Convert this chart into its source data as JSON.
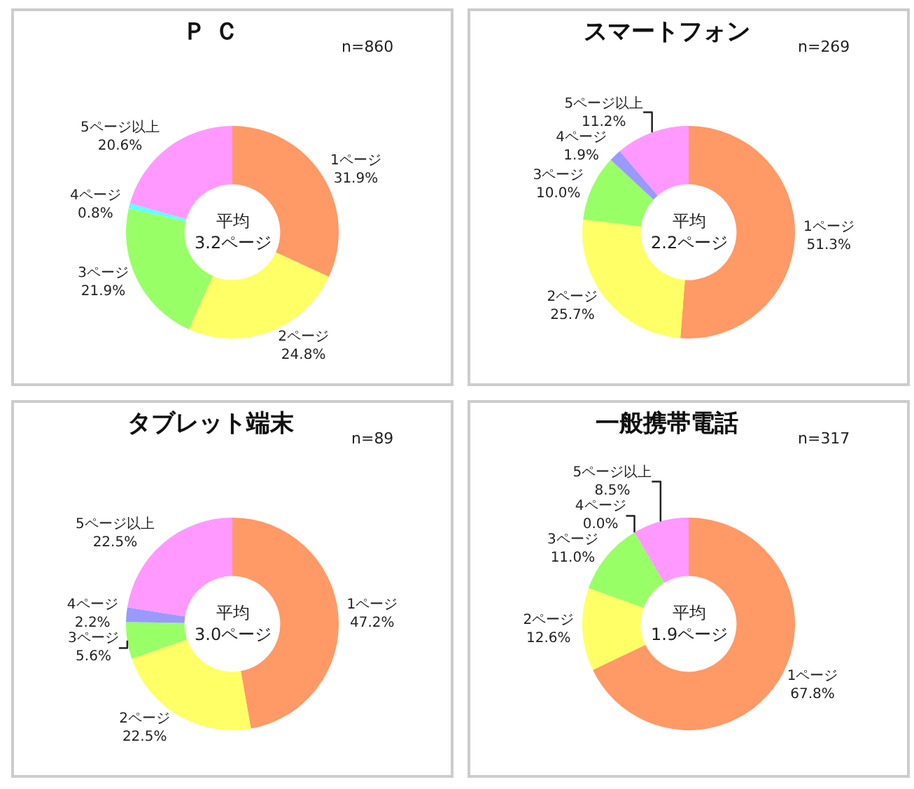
{
  "chart_data": [
    {
      "type": "donut",
      "title": "Ｐ Ｃ",
      "categories": [
        "1ページ",
        "2ページ",
        "3ページ",
        "4ページ",
        "5ページ以上"
      ],
      "values": [
        31.9,
        24.8,
        21.9,
        0.8,
        20.6
      ],
      "value_labels": [
        "31.9%",
        "24.8%",
        "21.9%",
        "0.8%",
        "20.6%"
      ],
      "colors": [
        "#ff9966",
        "#ffff66",
        "#99ff66",
        "#66ffff",
        "#ff99ff"
      ],
      "annotations": [
        "n=860",
        "平均\n3.2ページ"
      ],
      "legend": false
    },
    {
      "type": "donut",
      "title": "スマートフォン",
      "categories": [
        "1ページ",
        "2ページ",
        "3ページ",
        "4ページ",
        "5ページ以上"
      ],
      "values": [
        51.3,
        25.7,
        10.0,
        1.9,
        11.2
      ],
      "value_labels": [
        "51.3%",
        "25.7%",
        "10.0%",
        "1.9%",
        "11.2%"
      ],
      "colors": [
        "#ff9966",
        "#ffff66",
        "#99ff66",
        "#9999ff",
        "#ff99ff"
      ],
      "annotations": [
        "n=269",
        "平均\n2.2ページ"
      ],
      "legend": false
    },
    {
      "type": "donut",
      "title": "タブレット端末",
      "categories": [
        "1ページ",
        "2ページ",
        "3ページ",
        "4ページ",
        "5ページ以上"
      ],
      "values": [
        47.2,
        22.5,
        5.6,
        2.2,
        22.5
      ],
      "value_labels": [
        "47.2%",
        "22.5%",
        "5.6%",
        "2.2%",
        "22.5%"
      ],
      "colors": [
        "#ff9966",
        "#ffff66",
        "#99ff66",
        "#9999ff",
        "#ff99ff"
      ],
      "annotations": [
        "n=89",
        "平均\n3.0ページ"
      ],
      "legend": false
    },
    {
      "type": "donut",
      "title": "一般携帯電話",
      "categories": [
        "1ページ",
        "2ページ",
        "3ページ",
        "4ページ",
        "5ページ以上"
      ],
      "values": [
        67.8,
        12.6,
        11.0,
        0.0,
        8.5
      ],
      "value_labels": [
        "67.8%",
        "12.6%",
        "11.0%",
        "0.0%",
        "8.5%"
      ],
      "colors": [
        "#ff9966",
        "#ffff66",
        "#99ff66",
        "#9999ff",
        "#ff99ff"
      ],
      "annotations": [
        "n=317",
        "平均\n1.9ページ"
      ],
      "legend": false
    }
  ]
}
